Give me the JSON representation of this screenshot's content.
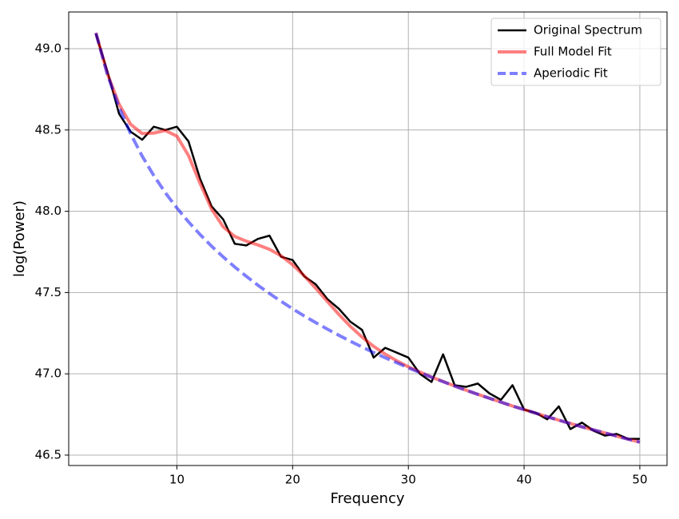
{
  "chart_data": {
    "type": "line",
    "xlabel": "Frequency",
    "ylabel": "log(Power)",
    "x": [
      3,
      4,
      5,
      6,
      7,
      8,
      9,
      10,
      11,
      12,
      13,
      14,
      15,
      16,
      17,
      18,
      19,
      20,
      21,
      22,
      23,
      24,
      25,
      26,
      27,
      28,
      29,
      30,
      31,
      32,
      33,
      34,
      35,
      36,
      37,
      38,
      39,
      40,
      41,
      42,
      43,
      44,
      45,
      46,
      47,
      48,
      49,
      50
    ],
    "series": [
      {
        "name": "Original Spectrum",
        "color": "#000000",
        "linestyle": "solid",
        "opacity": 1,
        "width": 2.5,
        "values": [
          49.09,
          48.86,
          48.6,
          48.49,
          48.44,
          48.52,
          48.5,
          48.52,
          48.43,
          48.2,
          48.03,
          47.95,
          47.8,
          47.79,
          47.83,
          47.85,
          47.72,
          47.7,
          47.6,
          47.55,
          47.46,
          47.4,
          47.32,
          47.27,
          47.1,
          47.16,
          47.13,
          47.1,
          47.0,
          46.95,
          47.12,
          46.93,
          46.92,
          46.94,
          46.88,
          46.84,
          46.93,
          46.78,
          46.76,
          46.72,
          46.8,
          46.66,
          46.7,
          46.65,
          46.62,
          46.63,
          46.6,
          46.6
        ]
      },
      {
        "name": "Full Model Fit",
        "color": "#ff0000",
        "linestyle": "solid",
        "opacity": 0.5,
        "width": 4,
        "values": [
          49.098,
          48.845,
          48.659,
          48.535,
          48.478,
          48.481,
          48.497,
          48.462,
          48.343,
          48.172,
          48.013,
          47.904,
          47.845,
          47.816,
          47.793,
          47.766,
          47.726,
          47.671,
          47.603,
          47.526,
          47.445,
          47.365,
          47.291,
          47.226,
          47.169,
          47.121,
          47.08,
          47.043,
          47.011,
          46.98,
          46.953,
          46.925,
          46.899,
          46.874,
          46.85,
          46.826,
          46.802,
          46.78,
          46.758,
          46.736,
          46.715,
          46.694,
          46.674,
          46.655,
          46.636,
          46.617,
          46.598,
          46.58
        ]
      },
      {
        "name": "Aperiodic Fit",
        "color": "#0000ff",
        "linestyle": "dashed",
        "opacity": 0.5,
        "width": 4,
        "values": [
          49.097,
          48.84,
          48.64,
          48.477,
          48.339,
          48.22,
          48.114,
          48.02,
          47.935,
          47.857,
          47.785,
          47.719,
          47.657,
          47.6,
          47.545,
          47.494,
          47.446,
          47.4,
          47.356,
          47.315,
          47.275,
          47.237,
          47.2,
          47.165,
          47.131,
          47.099,
          47.068,
          47.037,
          47.008,
          46.979,
          46.952,
          46.925,
          46.899,
          46.874,
          46.85,
          46.826,
          46.802,
          46.78,
          46.758,
          46.736,
          46.715,
          46.694,
          46.674,
          46.655,
          46.636,
          46.617,
          46.598,
          46.58
        ]
      }
    ],
    "xlim": [
      0.65,
      52.35
    ],
    "ylim": [
      46.436,
      49.226
    ],
    "xticks": [
      10,
      20,
      30,
      40,
      50
    ],
    "yticks": [
      46.5,
      {
        "value": 47,
        "label": "47.0"
      },
      47.5,
      {
        "value": 48,
        "label": "48.0"
      },
      48.5,
      {
        "value": 49,
        "label": "49.0"
      }
    ],
    "grid": true,
    "legend": "upper right"
  }
}
